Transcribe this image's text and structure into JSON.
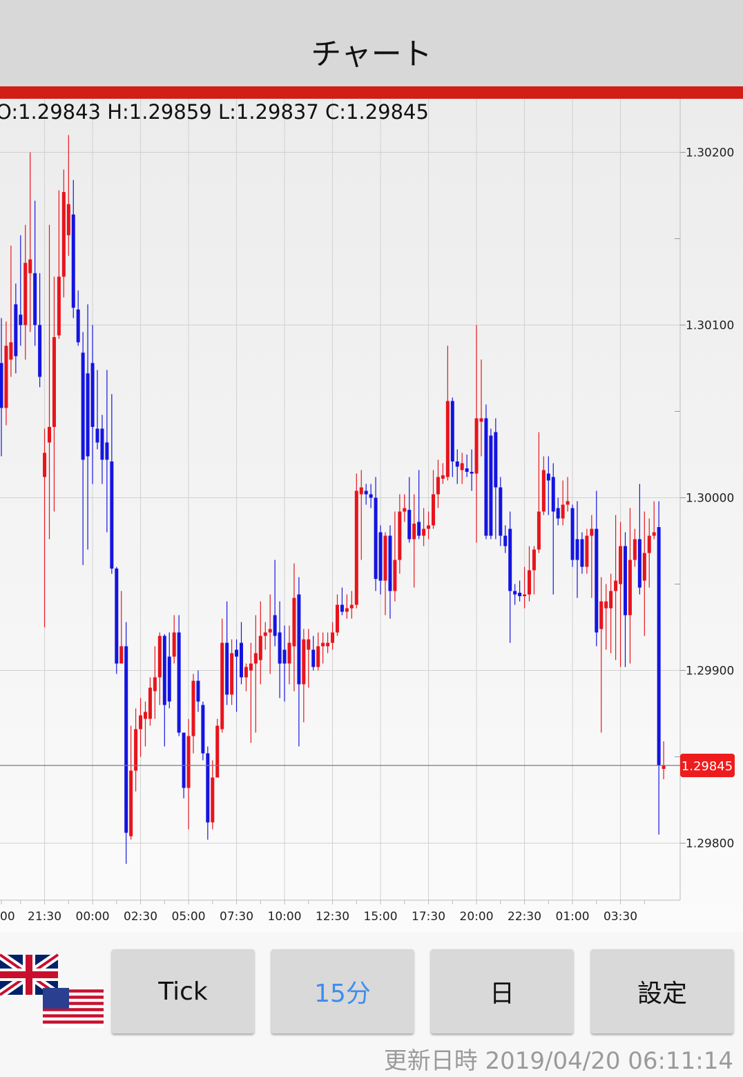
{
  "header": {
    "title": "チャート"
  },
  "chart_data": {
    "type": "candlestick",
    "ohlc_text": "O:1.29843 H:1.29859 L:1.29837 C:1.29845",
    "up_color": "#e8141c",
    "down_color": "#1414e0",
    "categories": [
      "00",
      null,
      null,
      null,
      null,
      null,
      null,
      null,
      null,
      "21:30",
      null,
      null,
      null,
      null,
      null,
      null,
      null,
      null,
      null,
      "00:00",
      null,
      null,
      null,
      null,
      null,
      null,
      null,
      null,
      null,
      "02:30",
      null,
      null,
      null,
      null,
      null,
      null,
      null,
      null,
      null,
      "05:00",
      null,
      null,
      null,
      null,
      null,
      null,
      null,
      null,
      null,
      "07:30",
      null,
      null,
      null,
      null,
      null,
      null,
      null,
      null,
      null,
      "10:00",
      null,
      null,
      null,
      null,
      null,
      null,
      null,
      null,
      null,
      "12:30",
      null,
      null,
      null,
      null,
      null,
      null,
      null,
      null,
      null,
      "15:00",
      null,
      null,
      null,
      null,
      null,
      null,
      null,
      null,
      null,
      "17:30",
      null,
      null,
      null,
      null,
      null,
      null,
      null,
      null,
      null,
      "20:00",
      null,
      null,
      null,
      null,
      null,
      null,
      null,
      null,
      null,
      "22:30",
      null,
      null,
      null,
      null,
      null,
      null,
      null,
      null,
      null,
      "01:00",
      null,
      null,
      null,
      null,
      null,
      null,
      null,
      null,
      null,
      "03:30",
      null,
      null,
      null,
      null,
      null,
      null,
      null,
      null,
      null
    ],
    "open": [
      1.30078,
      1.30052,
      1.3008,
      1.30112,
      1.30106,
      1.301,
      1.3013,
      1.3013,
      1.301,
      1.30012,
      1.30032,
      1.30041,
      1.30094,
      1.30128,
      1.30152,
      1.30164,
      1.30109,
      1.30084,
      1.30072,
      1.30078,
      1.3004,
      1.3004,
      1.30032,
      1.30021,
      1.29959,
      1.29904,
      1.29914,
      1.29804,
      1.29842,
      1.29866,
      1.29872,
      1.29872,
      1.29888,
      1.29896,
      1.2992,
      1.29908,
      1.29908,
      1.29922,
      1.29864,
      1.29832,
      1.29862,
      1.29894,
      1.2988,
      1.29852,
      1.29812,
      1.29838,
      1.29866,
      1.29916,
      1.29886,
      1.29912,
      1.29916,
      1.29896,
      1.299,
      1.29904,
      1.29906,
      1.2992,
      1.29922,
      1.29932,
      1.29922,
      1.29912,
      1.29904,
      1.29914,
      1.29944,
      1.29892,
      1.29912,
      1.29912,
      1.29902,
      1.29914,
      1.29914,
      1.29916,
      1.29922,
      1.29938,
      1.29934,
      1.29936,
      1.29938,
      1.30002,
      1.30004,
      1.30002,
      1.3,
      1.2998,
      1.29952,
      1.29978,
      1.29946,
      1.29964,
      1.29992,
      1.29993,
      1.29976,
      1.29986,
      1.29978,
      1.29982,
      1.29984,
      1.30002,
      1.30011,
      1.30012,
      1.30056,
      1.30021,
      1.30016,
      1.30017,
      1.30015,
      1.30014,
      1.30044,
      1.30046,
      1.30036,
      1.30038,
      1.30006,
      1.29978,
      1.29982,
      1.29946,
      1.29945,
      1.29943,
      1.29944,
      1.29958,
      1.2997,
      1.29992,
      1.30014,
      1.30012,
      1.29994,
      1.29988,
      1.29996,
      1.29994,
      1.29976,
      1.29976,
      1.2996,
      1.29978,
      1.29982,
      1.29924,
      1.29936,
      1.29936,
      1.29946,
      1.2995,
      1.29972,
      1.29932,
      1.29964,
      1.29976,
      1.29952,
      1.29968,
      1.29978,
      1.29983,
      1.29843
    ],
    "high": [
      1.30104,
      1.30102,
      1.30146,
      1.30124,
      1.30152,
      1.30158,
      1.302,
      1.30172,
      1.3013,
      1.3004,
      1.30158,
      1.30128,
      1.30178,
      1.3019,
      1.3021,
      1.30184,
      1.3012,
      1.30096,
      1.30112,
      1.301,
      1.30074,
      1.30048,
      1.30074,
      1.3006,
      1.2996,
      1.29946,
      1.29928,
      1.29868,
      1.29878,
      1.29884,
      1.29882,
      1.29896,
      1.29914,
      1.29922,
      1.29921,
      1.29922,
      1.29932,
      1.29932,
      1.29864,
      1.29872,
      1.29898,
      1.299,
      1.29882,
      1.29856,
      1.29848,
      1.29872,
      1.2993,
      1.2994,
      1.29918,
      1.29918,
      1.29928,
      1.29904,
      1.29916,
      1.29932,
      1.2994,
      1.29928,
      1.29944,
      1.29964,
      1.2994,
      1.29926,
      1.29926,
      1.29962,
      1.29954,
      1.29924,
      1.29924,
      1.2992,
      1.29922,
      1.29922,
      1.29922,
      1.29928,
      1.29944,
      1.29948,
      1.29944,
      1.29946,
      1.30014,
      1.30016,
      1.30008,
      1.30008,
      1.30012,
      1.29984,
      1.2998,
      1.29984,
      1.29992,
      1.30002,
      1.30002,
      1.30012,
      1.30002,
      1.30016,
      1.29994,
      1.29992,
      1.30016,
      1.30022,
      1.3002,
      1.30088,
      1.30058,
      1.30028,
      1.30026,
      1.30025,
      1.30028,
      1.301,
      1.3008,
      1.30054,
      1.3004,
      1.30046,
      1.30012,
      1.29984,
      1.29992,
      1.2995,
      1.29952,
      1.2996,
      1.29972,
      1.29972,
      1.30038,
      1.30024,
      1.30024,
      1.3002,
      1.3,
      1.3001,
      1.30012,
      1.29996,
      1.29998,
      1.2998,
      1.29982,
      1.2999,
      1.30004,
      1.29954,
      1.2995,
      1.29956,
      1.2999,
      1.29986,
      1.2998,
      1.29994,
      1.29982,
      1.30008,
      1.29992,
      1.29988,
      1.29998,
      1.29998,
      1.29859
    ],
    "low": [
      1.30024,
      1.30042,
      1.3007,
      1.30072,
      1.30088,
      1.3008,
      1.30096,
      1.30088,
      1.30064,
      1.29925,
      1.29976,
      1.29992,
      1.30092,
      1.30116,
      1.3014,
      1.30104,
      1.30088,
      1.29961,
      1.2997,
      1.30008,
      1.30028,
      1.30008,
      1.2998,
      1.29956,
      1.29898,
      1.29904,
      1.29788,
      1.29802,
      1.2983,
      1.2985,
      1.29856,
      1.29868,
      1.29872,
      1.2988,
      1.29856,
      1.29878,
      1.29904,
      1.29862,
      1.29826,
      1.29808,
      1.29852,
      1.29876,
      1.29848,
      1.29802,
      1.29808,
      1.29838,
      1.29864,
      1.2988,
      1.2988,
      1.29876,
      1.29892,
      1.29888,
      1.29858,
      1.29864,
      1.29892,
      1.29912,
      1.29898,
      1.29914,
      1.29884,
      1.29882,
      1.29892,
      1.29888,
      1.29856,
      1.2987,
      1.2989,
      1.299,
      1.299,
      1.29904,
      1.2991,
      1.29912,
      1.2992,
      1.29932,
      1.2993,
      1.2993,
      1.29936,
      1.29964,
      1.29996,
      1.29994,
      1.29946,
      1.29944,
      1.29932,
      1.2993,
      1.2994,
      1.29956,
      1.29986,
      1.29974,
      1.29948,
      1.29976,
      1.29972,
      1.29976,
      1.29982,
      1.29994,
      1.30008,
      1.3001,
      1.30012,
      1.30008,
      1.30008,
      1.30012,
      1.30004,
      1.29974,
      1.30024,
      1.29976,
      1.29976,
      1.29976,
      1.29972,
      1.29968,
      1.29916,
      1.29938,
      1.2994,
      1.29936,
      1.2994,
      1.29944,
      1.29968,
      1.2999,
      1.2999,
      1.29944,
      1.29984,
      1.29984,
      1.29992,
      1.2996,
      1.29942,
      1.29956,
      1.29956,
      1.29942,
      1.29914,
      1.29864,
      1.29912,
      1.2991,
      1.29906,
      1.29902,
      1.29902,
      1.29904,
      1.2996,
      1.29944,
      1.2992,
      1.29948,
      1.29976,
      1.29805,
      1.29837
    ],
    "close": [
      1.30052,
      1.30088,
      1.3009,
      1.30082,
      1.301,
      1.30136,
      1.30138,
      1.301,
      1.3007,
      1.30026,
      1.30041,
      1.30093,
      1.30128,
      1.30177,
      1.3017,
      1.3011,
      1.3009,
      1.30022,
      1.30024,
      1.30041,
      1.30032,
      1.30022,
      1.30022,
      1.29959,
      1.29904,
      1.29914,
      1.29806,
      1.29842,
      1.29866,
      1.29874,
      1.29876,
      1.2989,
      1.29896,
      1.2992,
      1.2988,
      1.29882,
      1.29922,
      1.29864,
      1.29832,
      1.29862,
      1.29894,
      1.29882,
      1.29852,
      1.29812,
      1.29838,
      1.29868,
      1.29916,
      1.29886,
      1.2991,
      1.29908,
      1.29896,
      1.29902,
      1.29904,
      1.2991,
      1.2992,
      1.29922,
      1.29924,
      1.2992,
      1.29904,
      1.29904,
      1.29916,
      1.29942,
      1.29892,
      1.29918,
      1.29918,
      1.29902,
      1.29914,
      1.29916,
      1.29916,
      1.29922,
      1.29938,
      1.29934,
      1.29936,
      1.29938,
      1.30004,
      1.30006,
      1.30002,
      1.3,
      1.29953,
      1.29952,
      1.29978,
      1.29946,
      1.29964,
      1.29992,
      1.29994,
      1.29976,
      1.29985,
      1.29978,
      1.29982,
      1.29984,
      1.30002,
      1.30012,
      1.30013,
      1.30056,
      1.30021,
      1.30018,
      1.3002,
      1.30015,
      1.30014,
      1.30046,
      1.30046,
      1.29978,
      1.29978,
      1.30006,
      1.29978,
      1.29972,
      1.29946,
      1.29944,
      1.29943,
      1.29944,
      1.29958,
      1.2997,
      1.29992,
      1.30016,
      1.3001,
      1.29992,
      1.29988,
      1.29996,
      1.29998,
      1.29964,
      1.29964,
      1.2996,
      1.29978,
      1.29982,
      1.29922,
      1.2994,
      1.2994,
      1.29946,
      1.29952,
      1.29972,
      1.29932,
      1.29964,
      1.29976,
      1.29948,
      1.29968,
      1.29978,
      1.2998,
      1.29845,
      1.29845
    ],
    "ylim": [
      1.29767,
      1.30231
    ],
    "yticks": [
      {
        "value": 1.298,
        "label": "1.29800"
      },
      {
        "value": 1.299,
        "label": "1.29900"
      },
      {
        "value": 1.3,
        "label": "1.30000"
      },
      {
        "value": 1.301,
        "label": "1.30100"
      },
      {
        "value": 1.302,
        "label": "1.30200"
      }
    ],
    "minor_yticks": [
      1.2985,
      1.2995,
      1.3005,
      1.3015
    ],
    "last_price": {
      "value": 1.29845,
      "label": "1.29845"
    },
    "grid": true
  },
  "buttons": [
    {
      "label": "Tick"
    },
    {
      "label": "15分",
      "selected": true
    },
    {
      "label": "日"
    },
    {
      "label": "設定"
    }
  ],
  "footer": {
    "updated": "更新日時 2019/04/20 06:11:14"
  }
}
